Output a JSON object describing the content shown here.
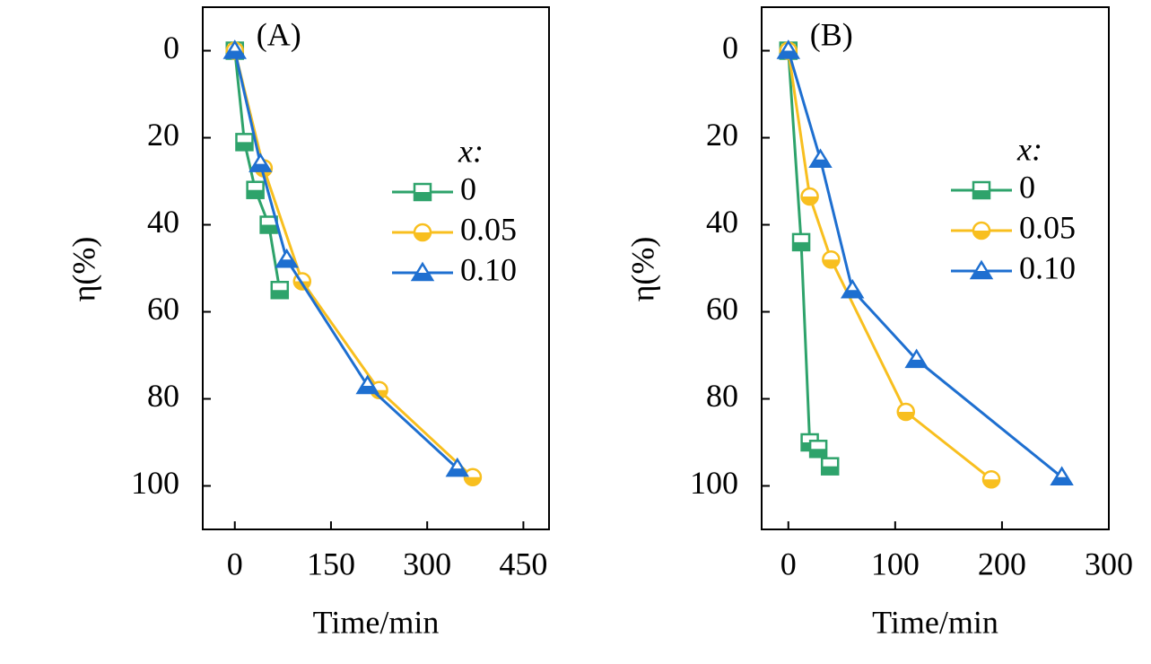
{
  "chart_data": [
    {
      "type": "line",
      "panel_label": "(A)",
      "x_label": "Time/min",
      "y_label": "η(%)",
      "legend_title": "x:",
      "xlim": [
        -50,
        490
      ],
      "xticks": [
        0,
        150,
        300,
        450
      ],
      "ylim": [
        110,
        -10
      ],
      "yticks": [
        0,
        20,
        40,
        60,
        80,
        100
      ],
      "series": [
        {
          "name": "0",
          "color": "#2ea36b",
          "marker": "square",
          "x": [
            0,
            15,
            32,
            53,
            70
          ],
          "values": [
            0,
            21,
            32,
            40,
            55
          ]
        },
        {
          "name": "0.05",
          "color": "#f8bf1f",
          "marker": "circle",
          "x": [
            0,
            45,
            105,
            225,
            371
          ],
          "values": [
            0,
            27,
            53,
            78,
            98
          ]
        },
        {
          "name": "0.10",
          "color": "#1e6fd0",
          "marker": "triangle",
          "x": [
            0,
            40,
            81,
            207,
            347
          ],
          "values": [
            0,
            26,
            48,
            77,
            96
          ]
        }
      ]
    },
    {
      "type": "line",
      "panel_label": "(B)",
      "x_label": "Time/min",
      "y_label": "η(%)",
      "legend_title": "x:",
      "xlim": [
        -25,
        300
      ],
      "xticks": [
        0,
        100,
        200,
        300
      ],
      "ylim": [
        110,
        -10
      ],
      "yticks": [
        0,
        20,
        40,
        60,
        80,
        100
      ],
      "series": [
        {
          "name": "0",
          "color": "#2ea36b",
          "marker": "square",
          "x": [
            0,
            12,
            20,
            28,
            39
          ],
          "values": [
            0,
            44,
            90,
            91.5,
            95.5
          ]
        },
        {
          "name": "0.05",
          "color": "#f8bf1f",
          "marker": "circle",
          "x": [
            0,
            20,
            40,
            110,
            190
          ],
          "values": [
            0,
            33.5,
            48,
            83,
            98.5
          ]
        },
        {
          "name": "0.10",
          "color": "#1e6fd0",
          "marker": "triangle",
          "x": [
            0,
            30,
            60,
            120,
            256
          ],
          "values": [
            0,
            25,
            55,
            71,
            98
          ]
        }
      ]
    }
  ]
}
